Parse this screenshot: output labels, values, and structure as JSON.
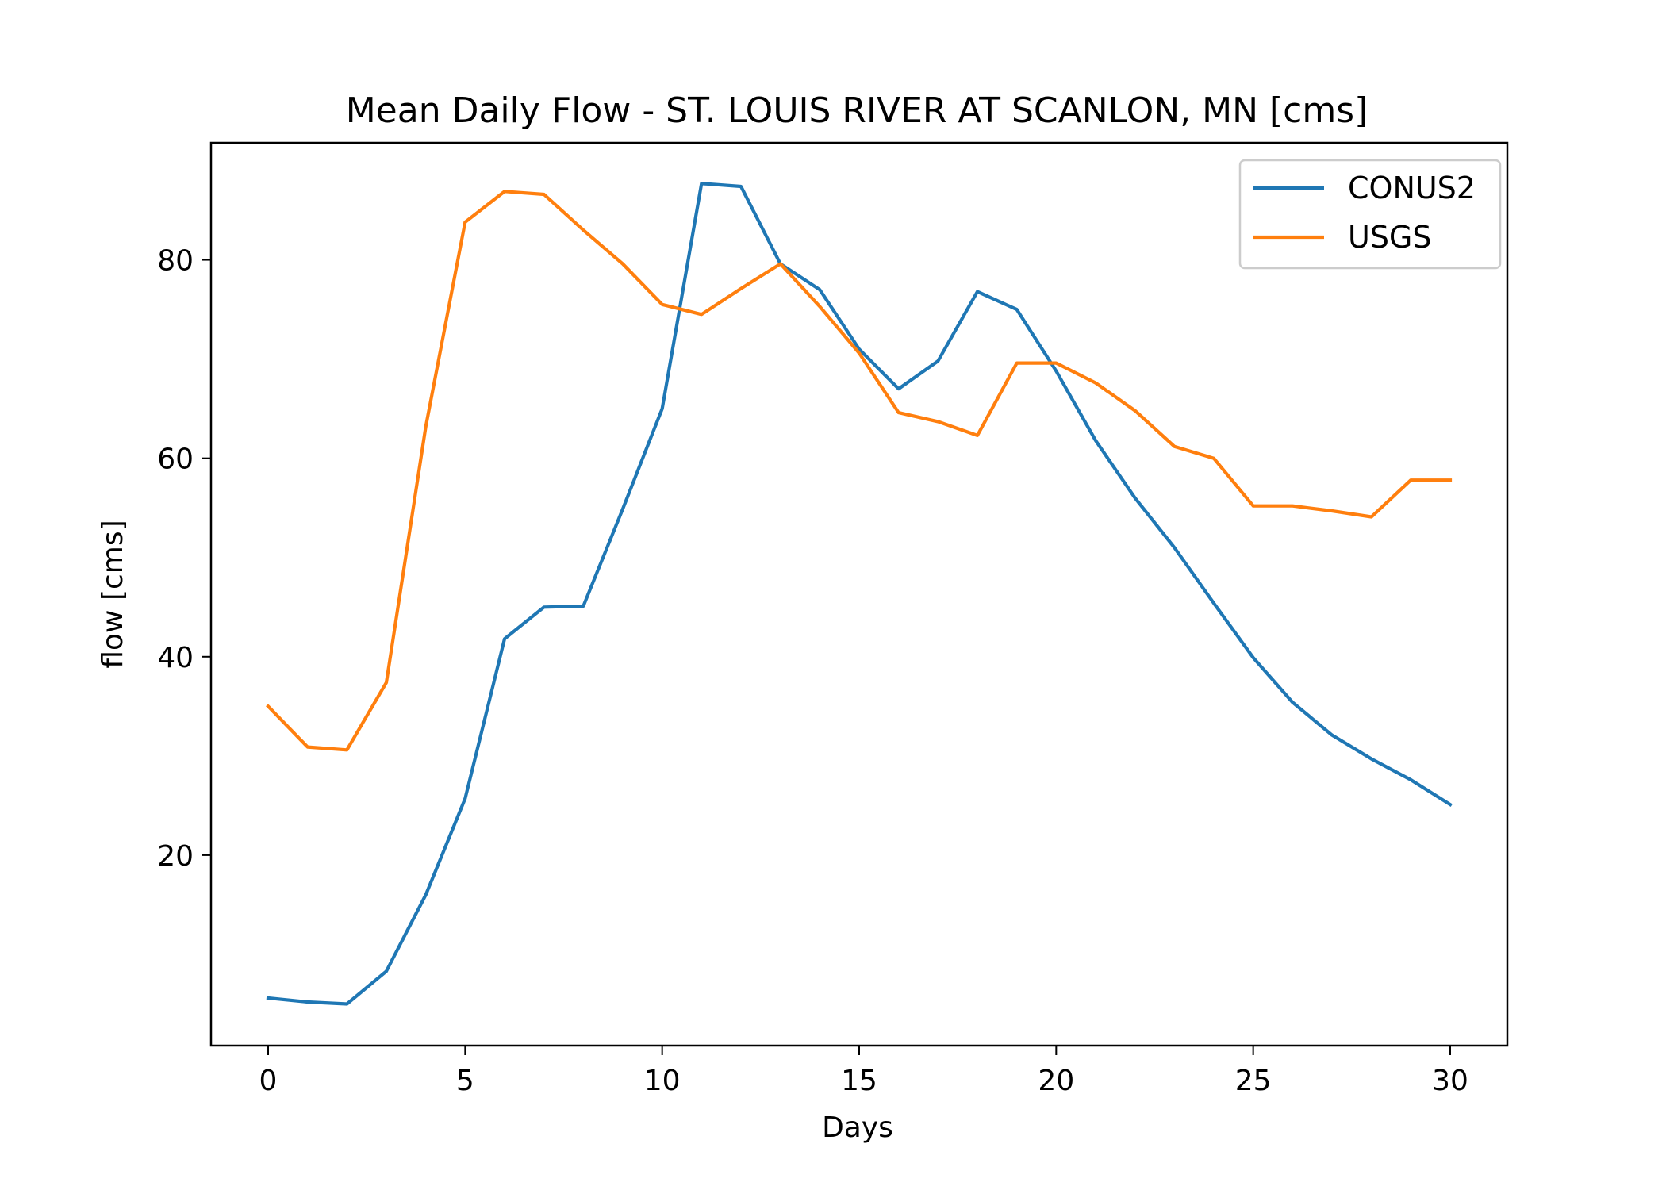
{
  "chart_data": {
    "type": "line",
    "title": "Mean Daily Flow - ST. LOUIS RIVER AT SCANLON, MN [cms]",
    "xlabel": "Days",
    "ylabel": "flow [cms]",
    "xlim": [
      -1.45,
      31.45
    ],
    "ylim": [
      0.8,
      91.8
    ],
    "xticks": [
      0,
      5,
      10,
      15,
      20,
      25,
      30
    ],
    "yticks": [
      20,
      40,
      60,
      80
    ],
    "grid": false,
    "legend_position": "top-right",
    "x": [
      0,
      1,
      2,
      3,
      4,
      5,
      6,
      7,
      8,
      9,
      10,
      11,
      12,
      13,
      14,
      15,
      16,
      17,
      18,
      19,
      20,
      21,
      22,
      23,
      24,
      25,
      26,
      27,
      28,
      29,
      30
    ],
    "series": [
      {
        "name": "CONUS2",
        "color": "#1f77b4",
        "values": [
          5.6,
          5.2,
          5.0,
          8.3,
          16.0,
          25.7,
          41.8,
          45.0,
          45.1,
          54.9,
          65.0,
          87.7,
          87.4,
          79.6,
          77.0,
          71.0,
          67.0,
          69.8,
          76.8,
          75.0,
          68.8,
          61.8,
          56.0,
          51.0,
          45.4,
          39.9,
          35.4,
          32.1,
          29.7,
          27.6,
          25.1
        ]
      },
      {
        "name": "USGS",
        "color": "#ff7f0e",
        "values": [
          35.0,
          30.9,
          30.6,
          37.4,
          63.2,
          83.8,
          86.9,
          86.6,
          83.0,
          79.6,
          75.5,
          74.5,
          77.1,
          79.6,
          75.3,
          70.6,
          64.6,
          63.7,
          62.3,
          69.6,
          69.6,
          67.6,
          64.8,
          61.2,
          60.0,
          55.2,
          55.2,
          54.7,
          54.1,
          57.8,
          57.8
        ]
      }
    ]
  }
}
